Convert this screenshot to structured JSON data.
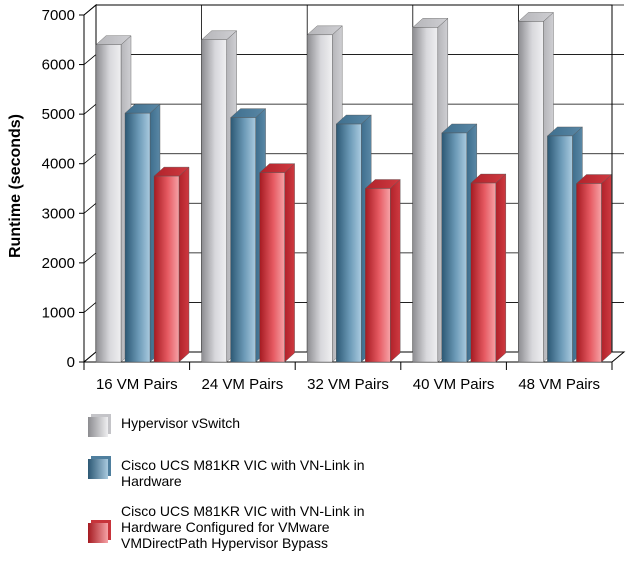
{
  "chart_data": {
    "type": "bar",
    "style": "3d-clustered",
    "categories": [
      "16 VM Pairs",
      "24 VM Pairs",
      "32 VM Pairs",
      "40 VM Pairs",
      "48 VM Pairs"
    ],
    "series": [
      {
        "name": "Hypervisor vSwitch",
        "values": [
          6400,
          6500,
          6600,
          6750,
          6870
        ],
        "color": "#a8a8ac"
      },
      {
        "name": "Cisco UCS M81KR VIC with VN-Link in\nHardware",
        "values": [
          5020,
          4930,
          4800,
          4620,
          4560
        ],
        "color": "#3f6f8f"
      },
      {
        "name": "Cisco UCS M81KR VIC with VN-Link in\nHardware Configured for VMware\nVMDirectPath Hypervisor Bypass",
        "values": [
          3750,
          3820,
          3500,
          3610,
          3600
        ],
        "color": "#c8242c"
      }
    ],
    "ylabel": "Runtime (seconds)",
    "xlabel": "",
    "title": "",
    "ylim": [
      0,
      7000
    ],
    "yticks": [
      0,
      1000,
      2000,
      3000,
      4000,
      5000,
      6000,
      7000
    ],
    "grid": true,
    "legend_position": "bottom-left"
  }
}
